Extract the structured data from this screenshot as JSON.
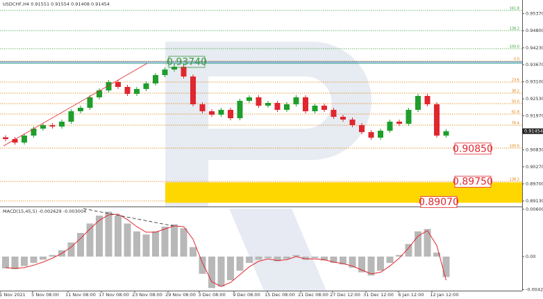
{
  "chart_data": {
    "type": "candlestick",
    "title": "USDCHF,H4 0.91551 0.91554 0.91408 0.91454",
    "colors": {
      "up": "#1f9e2c",
      "down": "#e0262e",
      "histogram": "#b8b8b8",
      "signal": "#e0262e",
      "zone": "#ffd700",
      "trend": "#3a7fc4"
    },
    "ylim": [
      0.88945,
      0.95824
    ],
    "yticks": [
      {
        "value": 0.9537,
        "label": "0.95370"
      },
      {
        "value": 0.948,
        "label": "0.94800"
      },
      {
        "value": 0.9423,
        "label": "0.94230"
      },
      {
        "value": 0.9367,
        "label": "0.93670"
      },
      {
        "value": 0.931,
        "label": "0.93100"
      },
      {
        "value": 0.9253,
        "label": "0.92530"
      },
      {
        "value": 0.9197,
        "label": "0.91970"
      },
      {
        "value": 0.9083,
        "label": "0.90830"
      },
      {
        "value": 0.9027,
        "label": "0.90270"
      },
      {
        "value": 0.897,
        "label": "0.89700"
      },
      {
        "value": 0.8913,
        "label": "0.89130"
      }
    ],
    "current_price": {
      "value": 0.91454,
      "label": "0.91454"
    },
    "x_labels": [
      "1 Nov 2021",
      "5 Nov 08:00",
      "11 Nov 08:00",
      "17 Nov 08:00",
      "23 Nov 08:00",
      "29 Nov 08:00",
      "3 Dec 08:00",
      "9 Dec 08:00",
      "15 Dec 08:00",
      "21 Dec 08:00",
      "27 Dec 12:00",
      "31 Dec 12:00",
      "6 Jan 12:00",
      "12 Jan 12:00"
    ],
    "first_open": 0.9125,
    "close": [
      0.91192,
      0.91076,
      0.91308,
      0.91539,
      0.91655,
      0.91609,
      0.91771,
      0.92118,
      0.92234,
      0.92582,
      0.92813,
      0.93091,
      0.92929,
      0.92698,
      0.9286,
      0.93045,
      0.93323,
      0.93508,
      0.93601,
      0.93276,
      0.9235,
      0.92118,
      0.92003,
      0.92165,
      0.91887,
      0.92466,
      0.92582,
      0.92304,
      0.92396,
      0.92165,
      0.9235,
      0.92582,
      0.92118,
      0.92304,
      0.92165,
      0.91933,
      0.91841,
      0.91655,
      0.91424,
      0.91239,
      0.9147,
      0.91771,
      0.91701,
      0.92165,
      0.92628,
      0.9235,
      0.91308,
      0.91454
    ],
    "levels": [
      {
        "label": "161.8",
        "value": 0.95477,
        "color": "#3aa03a"
      },
      {
        "label": "138.2",
        "value": 0.94805,
        "color": "#3aa03a"
      },
      {
        "label": "100.0",
        "value": 0.94203,
        "color": "#3aa03a"
      },
      {
        "label": "0.0",
        "value": 0.93786,
        "color": "#e07b00"
      },
      {
        "label": "23.6",
        "value": 0.93091,
        "color": "#e07b00"
      },
      {
        "label": "38.2",
        "value": 0.92721,
        "color": "#e07b00"
      },
      {
        "label": "50.0",
        "value": 0.92373,
        "color": "#e07b00"
      },
      {
        "label": "61.8",
        "value": 0.92026,
        "color": "#e07b00"
      },
      {
        "label": "76.4",
        "value": 0.91655,
        "color": "#e07b00"
      },
      {
        "label": "100.0",
        "value": 0.90891,
        "color": "#e07b00"
      },
      {
        "label": "138.2",
        "value": 0.89779,
        "color": "#e07b00"
      },
      {
        "label": "161.8",
        "value": 0.89131,
        "color": "#e07b00"
      }
    ],
    "annotations": [
      {
        "value": 0.9374,
        "label": "0.93740",
        "color": "#3a9a3a"
      },
      {
        "value": 0.9085,
        "label": "0.90850",
        "color": "#e0262e"
      },
      {
        "value": 0.8975,
        "label": "0.89750",
        "color": "#e0262e"
      },
      {
        "value": 0.8907,
        "label": "0.89070",
        "color": "#e0262e"
      }
    ],
    "macd": {
      "title": "MACD(15,45,5) -0.002629 -0.003004",
      "ylim": [
        -0.00433,
        0.00627
      ],
      "yticks": [
        {
          "value": 0.006008,
          "label": "0.006008"
        },
        {
          "value": 0,
          "label": "0.00"
        },
        {
          "value": -0.004209,
          "label": "-0.004209"
        }
      ],
      "histogram": [
        -0.0015,
        -0.0016,
        -0.0012,
        -0.0008,
        -0.0004,
        0.0002,
        0.0008,
        0.0018,
        0.003,
        0.0042,
        0.0052,
        0.0057,
        0.0052,
        0.0042,
        0.0032,
        0.0028,
        0.0032,
        0.0038,
        0.0041,
        0.0036,
        0.0012,
        -0.0022,
        -0.004,
        -0.0038,
        -0.003,
        -0.0018,
        -0.0008,
        -0.0004,
        -0.0002,
        -0.0006,
        -0.0003,
        0.0002,
        -0.0004,
        -0.0002,
        -0.0005,
        -0.0008,
        -0.001,
        -0.0014,
        -0.002,
        -0.0024,
        -0.0018,
        -0.0008,
        0.0002,
        0.0016,
        0.0032,
        0.0035,
        0.0005,
        -0.0026
      ],
      "signal": [
        -0.0014,
        -0.0015,
        -0.0014,
        -0.0011,
        -0.0007,
        -0.0002,
        0.0004,
        0.0012,
        0.0023,
        0.0035,
        0.0046,
        0.0053,
        0.0054,
        0.0047,
        0.0038,
        0.0031,
        0.0031,
        0.0035,
        0.0039,
        0.0038,
        0.0022,
        -0.0008,
        -0.0032,
        -0.0038,
        -0.0033,
        -0.0023,
        -0.0013,
        -0.0006,
        -0.0003,
        -0.0005,
        -0.0004,
        0.0,
        -0.0003,
        -0.0003,
        -0.0004,
        -0.0007,
        -0.0009,
        -0.0012,
        -0.0017,
        -0.0022,
        -0.002,
        -0.0012,
        -0.0002,
        0.0011,
        0.0026,
        0.0033,
        0.0014,
        -0.003
      ]
    }
  }
}
